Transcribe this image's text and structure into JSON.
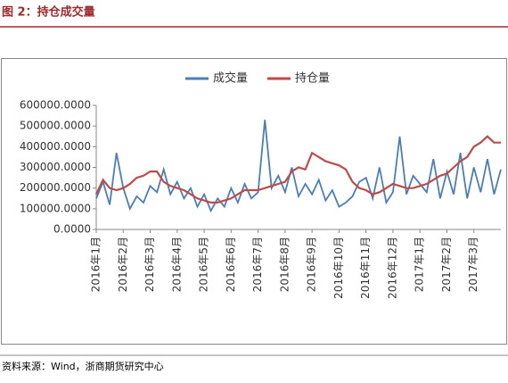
{
  "header": {
    "title": "图 2：持仓成交量"
  },
  "chart_data": {
    "type": "line",
    "categories": [
      "2016年1月",
      null,
      null,
      null,
      "2016年2月",
      null,
      null,
      null,
      "2016年3月",
      null,
      null,
      null,
      "2016年4月",
      null,
      null,
      null,
      "2016年5月",
      null,
      null,
      null,
      "2016年6月",
      null,
      null,
      null,
      "2016年7月",
      null,
      null,
      null,
      "2016年8月",
      null,
      null,
      null,
      "2016年9月",
      null,
      null,
      null,
      "2016年10月",
      null,
      null,
      null,
      "2016年11月",
      null,
      null,
      null,
      "2016年12月",
      null,
      null,
      null,
      "2017年1月",
      null,
      null,
      null,
      "2017年2月",
      null,
      null,
      null,
      "2017年3月",
      null,
      null,
      null,
      null
    ],
    "series": [
      {
        "name": "成交量",
        "color": "#4a7ebb",
        "values": [
          150000,
          230000,
          120000,
          370000,
          200000,
          100000,
          160000,
          130000,
          210000,
          180000,
          290000,
          170000,
          230000,
          150000,
          200000,
          110000,
          170000,
          90000,
          150000,
          110000,
          200000,
          130000,
          220000,
          150000,
          180000,
          530000,
          200000,
          260000,
          180000,
          300000,
          160000,
          220000,
          170000,
          240000,
          140000,
          190000,
          110000,
          130000,
          160000,
          230000,
          250000,
          150000,
          300000,
          130000,
          180000,
          450000,
          170000,
          260000,
          220000,
          180000,
          340000,
          150000,
          280000,
          170000,
          370000,
          150000,
          300000,
          180000,
          340000,
          170000,
          290000
        ]
      },
      {
        "name": "持仓量",
        "color": "#be4b48",
        "values": [
          170000,
          240000,
          200000,
          190000,
          200000,
          220000,
          250000,
          260000,
          280000,
          280000,
          230000,
          210000,
          200000,
          190000,
          170000,
          150000,
          140000,
          130000,
          130000,
          140000,
          150000,
          170000,
          190000,
          190000,
          190000,
          200000,
          210000,
          220000,
          230000,
          280000,
          300000,
          290000,
          370000,
          350000,
          330000,
          320000,
          310000,
          290000,
          230000,
          200000,
          190000,
          170000,
          180000,
          200000,
          220000,
          210000,
          200000,
          200000,
          210000,
          220000,
          240000,
          260000,
          270000,
          300000,
          330000,
          350000,
          400000,
          420000,
          450000,
          420000,
          420000
        ]
      }
    ],
    "ylim": [
      0,
      600000
    ],
    "yticks": [
      {
        "value": 0,
        "label": "0.0000"
      },
      {
        "value": 100000,
        "label": "100000.0000"
      },
      {
        "value": 200000,
        "label": "200000.0000"
      },
      {
        "value": 300000,
        "label": "300000.0000"
      },
      {
        "value": 400000,
        "label": "400000.0000"
      },
      {
        "value": 500000,
        "label": "500000.0000"
      },
      {
        "value": 600000,
        "label": "600000.0000"
      }
    ],
    "grid": false,
    "legend": "top"
  },
  "footer": {
    "source": "资料来源：Wind，浙商期货研究中心"
  }
}
